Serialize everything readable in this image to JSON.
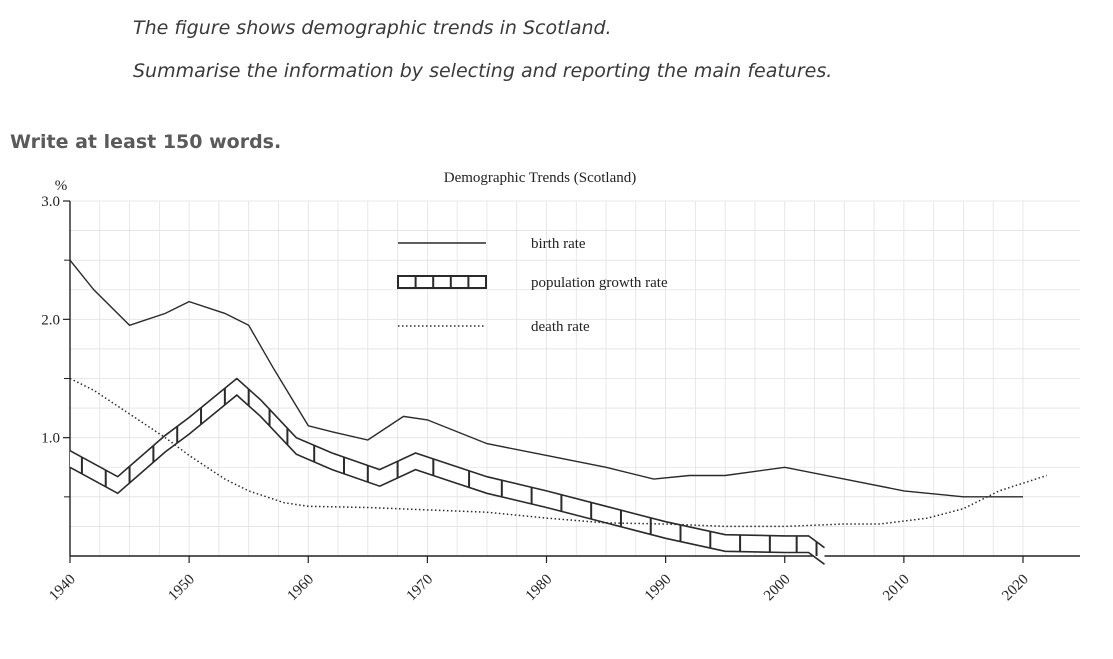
{
  "task": {
    "line1": "The figure shows demographic trends in Scotland.",
    "line2": "Summarise the information by selecting and reporting the main features.",
    "instruction": "Write at least 150 words."
  },
  "colors": {
    "text": "#3a3a3a",
    "line": "#2a2a2a",
    "grid": "#e2e2e2"
  },
  "chart_data": {
    "type": "line",
    "title": "Demographic Trends (Scotland)",
    "ylabel": "%",
    "xlim": [
      1940,
      2022
    ],
    "ylim": [
      0,
      3.0
    ],
    "x_ticks": [
      1940,
      1950,
      1960,
      1970,
      1980,
      1990,
      2000,
      2010,
      2020
    ],
    "y_ticks": [
      {
        "value": 1.0,
        "label": "1.0"
      },
      {
        "value": 2.0,
        "label": "2.0"
      },
      {
        "value": 3.0,
        "label": "3.0"
      }
    ],
    "grid": true,
    "legend_position": "top-center",
    "series": [
      {
        "name": "birth rate",
        "style": "solid",
        "x": [
          1940,
          1942,
          1945,
          1948,
          1950,
          1953,
          1955,
          1957,
          1960,
          1962,
          1965,
          1968,
          1970,
          1975,
          1980,
          1985,
          1989,
          1992,
          1995,
          2000,
          2005,
          2010,
          2015,
          2020
        ],
        "y": [
          2.5,
          2.25,
          1.95,
          2.05,
          2.15,
          2.05,
          1.95,
          1.6,
          1.1,
          1.05,
          0.98,
          1.18,
          1.15,
          0.95,
          0.85,
          0.75,
          0.65,
          0.68,
          0.68,
          0.75,
          0.65,
          0.55,
          0.5,
          0.5
        ]
      },
      {
        "name": "population growth rate",
        "style": "ladder",
        "x": [
          1940,
          1944,
          1948,
          1950,
          1954,
          1956,
          1959,
          1962,
          1966,
          1969,
          1972,
          1975,
          1980,
          1985,
          1990,
          1995,
          2000,
          2002,
          2004
        ],
        "y": [
          0.82,
          0.6,
          0.95,
          1.1,
          1.43,
          1.25,
          0.93,
          0.8,
          0.66,
          0.8,
          0.7,
          0.6,
          0.48,
          0.35,
          0.22,
          0.11,
          0.1,
          0.1,
          -0.05
        ]
      },
      {
        "name": "death rate",
        "style": "dotted",
        "x": [
          1940,
          1942,
          1945,
          1948,
          1950,
          1953,
          1955,
          1958,
          1960,
          1965,
          1970,
          1975,
          1980,
          1985,
          1990,
          1995,
          2000,
          2005,
          2008,
          2012,
          2015,
          2018,
          2022
        ],
        "y": [
          1.5,
          1.4,
          1.2,
          1.0,
          0.85,
          0.65,
          0.55,
          0.45,
          0.42,
          0.41,
          0.39,
          0.37,
          0.32,
          0.28,
          0.27,
          0.25,
          0.25,
          0.27,
          0.27,
          0.32,
          0.4,
          0.55,
          0.68
        ]
      }
    ]
  }
}
